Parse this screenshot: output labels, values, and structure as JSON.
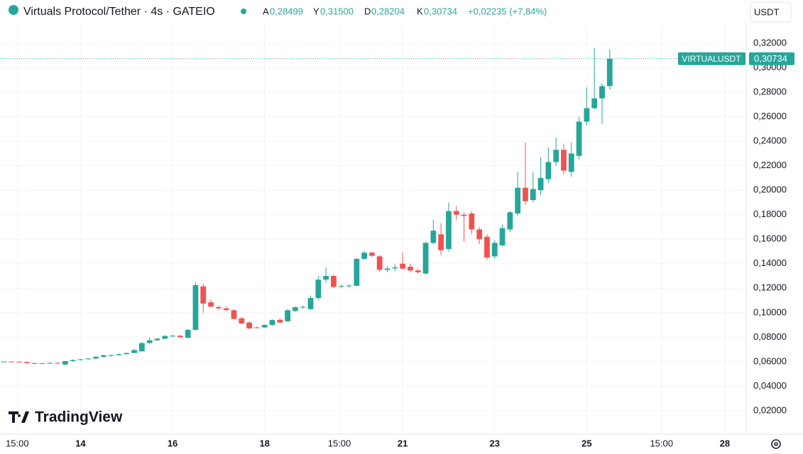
{
  "chart_data": {
    "type": "candlestick",
    "header": {
      "symbol": "Virtuals Protocol/Tether · 4s · GATEIO",
      "open_label": "A",
      "open": "0,28499",
      "high_label": "Y",
      "high": "0,31500",
      "low_label": "D",
      "low": "0,28204",
      "close_label": "K",
      "close": "0,30734",
      "change": "+0,02235 (+7,84%)"
    },
    "currency": "USDT",
    "brand": "TradingView",
    "last_price": {
      "name": "VIRTUALUSDT",
      "value": 0.30734,
      "label": "0,30734"
    },
    "up_color": "#26a69a",
    "down_color": "#ef5350",
    "open": [
      0.06,
      0.0601,
      0.06,
      0.0597,
      0.0588,
      0.0585,
      0.0587,
      0.059,
      0.0577,
      0.0605,
      0.0614,
      0.062,
      0.0626,
      0.064,
      0.0648,
      0.0654,
      0.0662,
      0.0671,
      0.0685,
      0.0752,
      0.0775,
      0.0788,
      0.0808,
      0.0812,
      0.0795,
      0.086,
      0.1215,
      0.1085,
      0.1045,
      0.1035,
      0.102,
      0.0955,
      0.092,
      0.088,
      0.088,
      0.09,
      0.0942,
      0.093,
      0.1015,
      0.1042,
      0.103,
      0.112,
      0.127,
      0.13,
      0.1215,
      0.1218,
      0.122,
      0.144,
      0.149,
      0.146,
      0.135,
      0.1362,
      0.14,
      0.1375,
      0.1345,
      0.132,
      0.157,
      0.164,
      0.152,
      0.183,
      0.18,
      0.181,
      0.168,
      0.162,
      0.146,
      0.155,
      0.168,
      0.181,
      0.202,
      0.192,
      0.2,
      0.209,
      0.223,
      0.233,
      0.215,
      0.228,
      0.256,
      0.267,
      0.275,
      0.28499
    ],
    "high": [
      0.0603,
      0.0603,
      0.0602,
      0.0599,
      0.0592,
      0.059,
      0.0593,
      0.0596,
      0.0607,
      0.0617,
      0.0624,
      0.063,
      0.0645,
      0.066,
      0.0658,
      0.0668,
      0.0676,
      0.0705,
      0.076,
      0.08,
      0.0795,
      0.0818,
      0.082,
      0.0818,
      0.0868,
      0.125,
      0.1235,
      0.111,
      0.106,
      0.105,
      0.103,
      0.0965,
      0.093,
      0.089,
      0.0905,
      0.0945,
      0.0955,
      0.103,
      0.105,
      0.1058,
      0.114,
      0.13,
      0.137,
      0.131,
      0.123,
      0.1235,
      0.1445,
      0.1505,
      0.15,
      0.147,
      0.138,
      0.1395,
      0.149,
      0.14,
      0.136,
      0.158,
      0.176,
      0.173,
      0.19,
      0.187,
      0.182,
      0.183,
      0.17,
      0.164,
      0.159,
      0.172,
      0.183,
      0.215,
      0.239,
      0.215,
      0.227,
      0.235,
      0.243,
      0.238,
      0.239,
      0.26,
      0.284,
      0.316,
      0.287,
      0.315
    ],
    "low": [
      0.0597,
      0.0598,
      0.0595,
      0.0585,
      0.0583,
      0.0582,
      0.0584,
      0.0584,
      0.0572,
      0.06,
      0.0609,
      0.0615,
      0.0622,
      0.0635,
      0.0642,
      0.065,
      0.0658,
      0.0668,
      0.0682,
      0.0748,
      0.077,
      0.0783,
      0.08,
      0.0795,
      0.079,
      0.0855,
      0.1,
      0.104,
      0.1025,
      0.101,
      0.0945,
      0.0905,
      0.0865,
      0.0872,
      0.0875,
      0.0895,
      0.0915,
      0.0925,
      0.1005,
      0.103,
      0.1025,
      0.11,
      0.1245,
      0.12,
      0.12,
      0.1205,
      0.1215,
      0.143,
      0.1455,
      0.1335,
      0.133,
      0.134,
      0.135,
      0.133,
      0.132,
      0.131,
      0.156,
      0.147,
      0.15,
      0.176,
      0.158,
      0.164,
      0.156,
      0.143,
      0.144,
      0.154,
      0.166,
      0.179,
      0.188,
      0.19,
      0.196,
      0.206,
      0.22,
      0.213,
      0.211,
      0.225,
      0.253,
      0.266,
      0.254,
      0.28204
    ],
    "close": [
      0.0601,
      0.06,
      0.0597,
      0.0588,
      0.0585,
      0.0587,
      0.059,
      0.0587,
      0.0605,
      0.0614,
      0.062,
      0.0626,
      0.064,
      0.0652,
      0.0654,
      0.0662,
      0.0671,
      0.0695,
      0.0752,
      0.0775,
      0.0788,
      0.081,
      0.0812,
      0.08,
      0.086,
      0.1225,
      0.1075,
      0.105,
      0.1035,
      0.1022,
      0.095,
      0.0912,
      0.0872,
      0.0878,
      0.09,
      0.094,
      0.092,
      0.102,
      0.1045,
      0.1048,
      0.112,
      0.127,
      0.13,
      0.121,
      0.1218,
      0.1222,
      0.144,
      0.149,
      0.1465,
      0.135,
      0.136,
      0.137,
      0.136,
      0.1345,
      0.133,
      0.157,
      0.167,
      0.151,
      0.183,
      0.18,
      0.179,
      0.168,
      0.16,
      0.145,
      0.157,
      0.169,
      0.182,
      0.202,
      0.191,
      0.201,
      0.21,
      0.223,
      0.233,
      0.216,
      0.23,
      0.256,
      0.267,
      0.275,
      0.285,
      0.30734
    ],
    "xlim": [
      -0.5,
      96.7
    ],
    "xticks": [
      {
        "value": 1.75,
        "label": "15:00"
      },
      {
        "value": 10,
        "label": "14"
      },
      {
        "value": 22,
        "label": "16"
      },
      {
        "value": 34,
        "label": "18"
      },
      {
        "value": 43.75,
        "label": "15:00"
      },
      {
        "value": 52,
        "label": "21"
      },
      {
        "value": 64,
        "label": "23"
      },
      {
        "value": 76,
        "label": "25"
      },
      {
        "value": 85.75,
        "label": "15:00"
      },
      {
        "value": 94,
        "label": "28"
      }
    ],
    "ylim": [
      0,
      0.335
    ],
    "yticks": [
      {
        "value": 0.02,
        "label": "0,02000"
      },
      {
        "value": 0.04,
        "label": "0,04000"
      },
      {
        "value": 0.06,
        "label": "0,06000"
      },
      {
        "value": 0.08,
        "label": "0,08000"
      },
      {
        "value": 0.1,
        "label": "0,10000"
      },
      {
        "value": 0.12,
        "label": "0,12000"
      },
      {
        "value": 0.14,
        "label": "0,14000"
      },
      {
        "value": 0.16,
        "label": "0,16000"
      },
      {
        "value": 0.18,
        "label": "0,18000"
      },
      {
        "value": 0.2,
        "label": "0,20000"
      },
      {
        "value": 0.22,
        "label": "0,22000"
      },
      {
        "value": 0.24,
        "label": "0,24000"
      },
      {
        "value": 0.26,
        "label": "0,26000"
      },
      {
        "value": 0.28,
        "label": "0,28000"
      },
      {
        "value": 0.3,
        "label": "0,30000"
      },
      {
        "value": 0.32,
        "label": "0,32000"
      }
    ],
    "grid": true
  }
}
